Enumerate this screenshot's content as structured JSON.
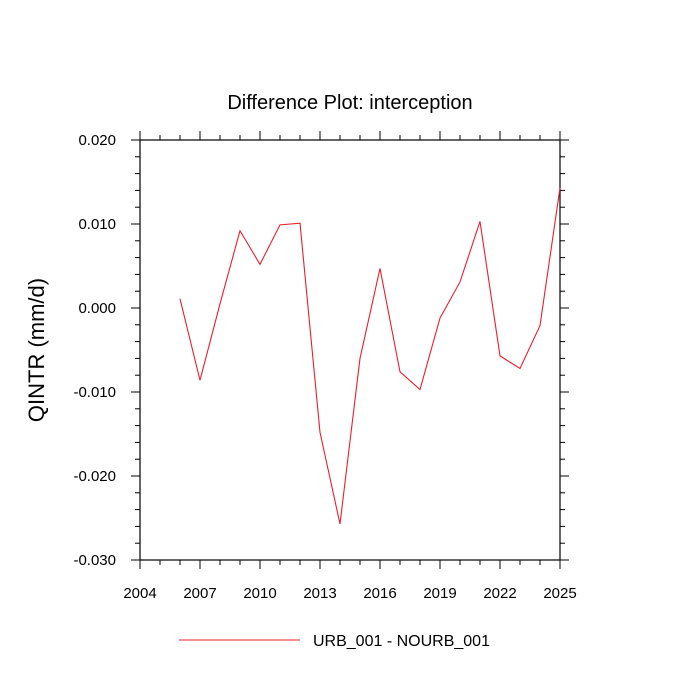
{
  "chart_data": {
    "type": "line",
    "title": "Difference Plot: interception",
    "xlabel": "",
    "ylabel": "QINTR  (mm/d)",
    "xlim": [
      2004,
      2025
    ],
    "ylim": [
      -0.03,
      0.02
    ],
    "x_ticks": [
      2004,
      2007,
      2010,
      2013,
      2016,
      2019,
      2022,
      2025
    ],
    "y_ticks": [
      -0.03,
      -0.02,
      -0.01,
      0.0,
      0.01,
      0.02
    ],
    "y_tick_labels": [
      "-0.030",
      "-0.020",
      "-0.010",
      "0.000",
      "0.010",
      "0.020"
    ],
    "x_minor_step": 1,
    "y_minor_step": 0.002,
    "grid": false,
    "legend_position": "bottom-center",
    "series": [
      {
        "name": "URB_001 - NOURB_001",
        "color": "#e8202a",
        "x": [
          2006,
          2007,
          2008,
          2009,
          2010,
          2011,
          2012,
          2013,
          2014,
          2015,
          2016,
          2017,
          2018,
          2019,
          2020,
          2021,
          2022,
          2023,
          2024,
          2025
        ],
        "y": [
          0.0011,
          -0.0086,
          0.0005,
          0.0092,
          0.0052,
          0.0099,
          0.0101,
          -0.0148,
          -0.0257,
          -0.006,
          0.0047,
          -0.0076,
          -0.0097,
          -0.0012,
          0.0031,
          0.0103,
          -0.0057,
          -0.0072,
          -0.0021,
          0.0143
        ]
      }
    ]
  }
}
